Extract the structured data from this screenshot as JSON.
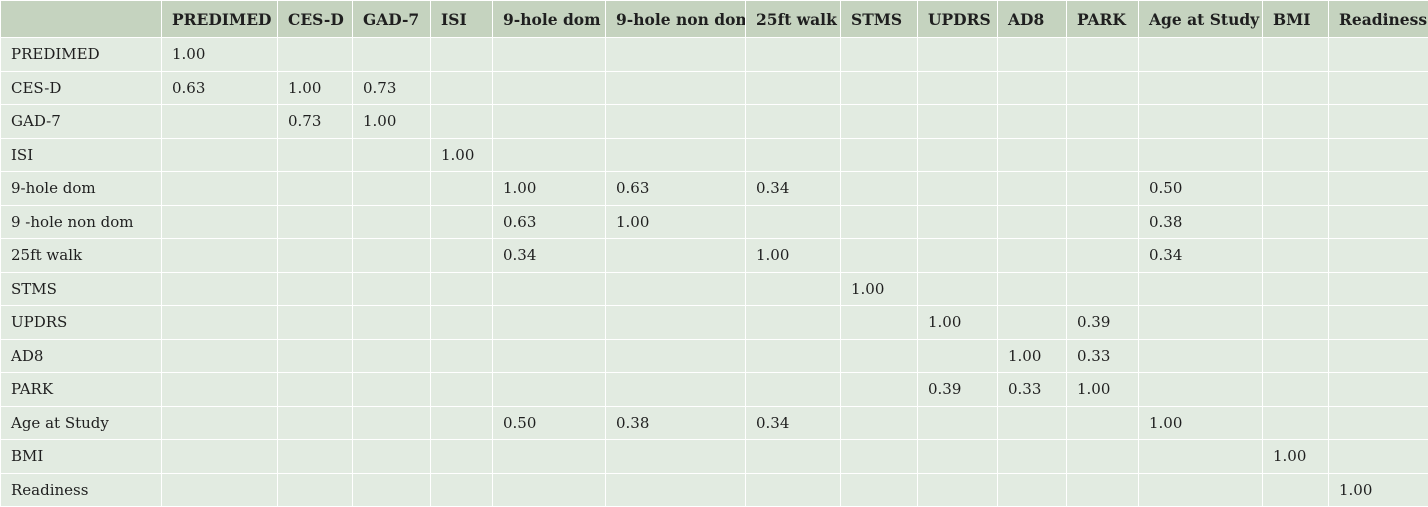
{
  "table": {
    "columns": [
      "",
      "PREDIMED",
      "CES-D",
      "GAD-7",
      "ISI",
      "9-hole dom",
      "9-hole non dom",
      "25ft walk",
      "STMS",
      "UPDRS",
      "AD8",
      "PARK",
      "Age at Study",
      "BMI",
      "Readiness"
    ],
    "rows": [
      {
        "label": "PREDIMED",
        "cells": [
          "1.00",
          "",
          "",
          "",
          "",
          "",
          "",
          "",
          "",
          "",
          "",
          "",
          "",
          ""
        ]
      },
      {
        "label": "CES-D",
        "cells": [
          "0.63",
          "1.00",
          "0.73",
          "",
          "",
          "",
          "",
          "",
          "",
          "",
          "",
          "",
          "",
          ""
        ]
      },
      {
        "label": "GAD-7",
        "cells": [
          "",
          "0.73",
          "1.00",
          "",
          "",
          "",
          "",
          "",
          "",
          "",
          "",
          "",
          "",
          ""
        ]
      },
      {
        "label": "ISI",
        "cells": [
          "",
          "",
          "",
          "1.00",
          "",
          "",
          "",
          "",
          "",
          "",
          "",
          "",
          "",
          ""
        ]
      },
      {
        "label": "9-hole dom",
        "cells": [
          "",
          "",
          "",
          "",
          "1.00",
          "0.63",
          "0.34",
          "",
          "",
          "",
          "",
          "0.50",
          "",
          ""
        ]
      },
      {
        "label": "9 -hole non dom",
        "cells": [
          "",
          "",
          "",
          "",
          "0.63",
          "1.00",
          "",
          "",
          "",
          "",
          "",
          "0.38",
          "",
          ""
        ]
      },
      {
        "label": "25ft walk",
        "cells": [
          "",
          "",
          "",
          "",
          "0.34",
          "",
          "1.00",
          "",
          "",
          "",
          "",
          "0.34",
          "",
          ""
        ]
      },
      {
        "label": "STMS",
        "cells": [
          "",
          "",
          "",
          "",
          "",
          "",
          "",
          "1.00",
          "",
          "",
          "",
          "",
          "",
          ""
        ]
      },
      {
        "label": "UPDRS",
        "cells": [
          "",
          "",
          "",
          "",
          "",
          "",
          "",
          "",
          "1.00",
          "",
          "0.39",
          "",
          "",
          ""
        ]
      },
      {
        "label": "AD8",
        "cells": [
          "",
          "",
          "",
          "",
          "",
          "",
          "",
          "",
          "",
          "1.00",
          "0.33",
          "",
          "",
          ""
        ]
      },
      {
        "label": "PARK",
        "cells": [
          "",
          "",
          "",
          "",
          "",
          "",
          "",
          "",
          "0.39",
          "0.33",
          "1.00",
          "",
          "",
          ""
        ]
      },
      {
        "label": "Age at Study",
        "cells": [
          "",
          "",
          "",
          "",
          "0.50",
          "0.38",
          "0.34",
          "",
          "",
          "",
          "",
          "1.00",
          "",
          ""
        ]
      },
      {
        "label": "BMI",
        "cells": [
          "",
          "",
          "",
          "",
          "",
          "",
          "",
          "",
          "",
          "",
          "",
          "",
          "1.00",
          ""
        ]
      },
      {
        "label": "Readiness",
        "cells": [
          "",
          "",
          "",
          "",
          "",
          "",
          "",
          "",
          "",
          "",
          "",
          "",
          "",
          "1.00"
        ]
      }
    ]
  },
  "colors": {
    "header_bg": "#c5d3bf",
    "body_bg": "#e2ebe1",
    "grid_line": "#ffffff",
    "text": "#1f1f1f"
  }
}
